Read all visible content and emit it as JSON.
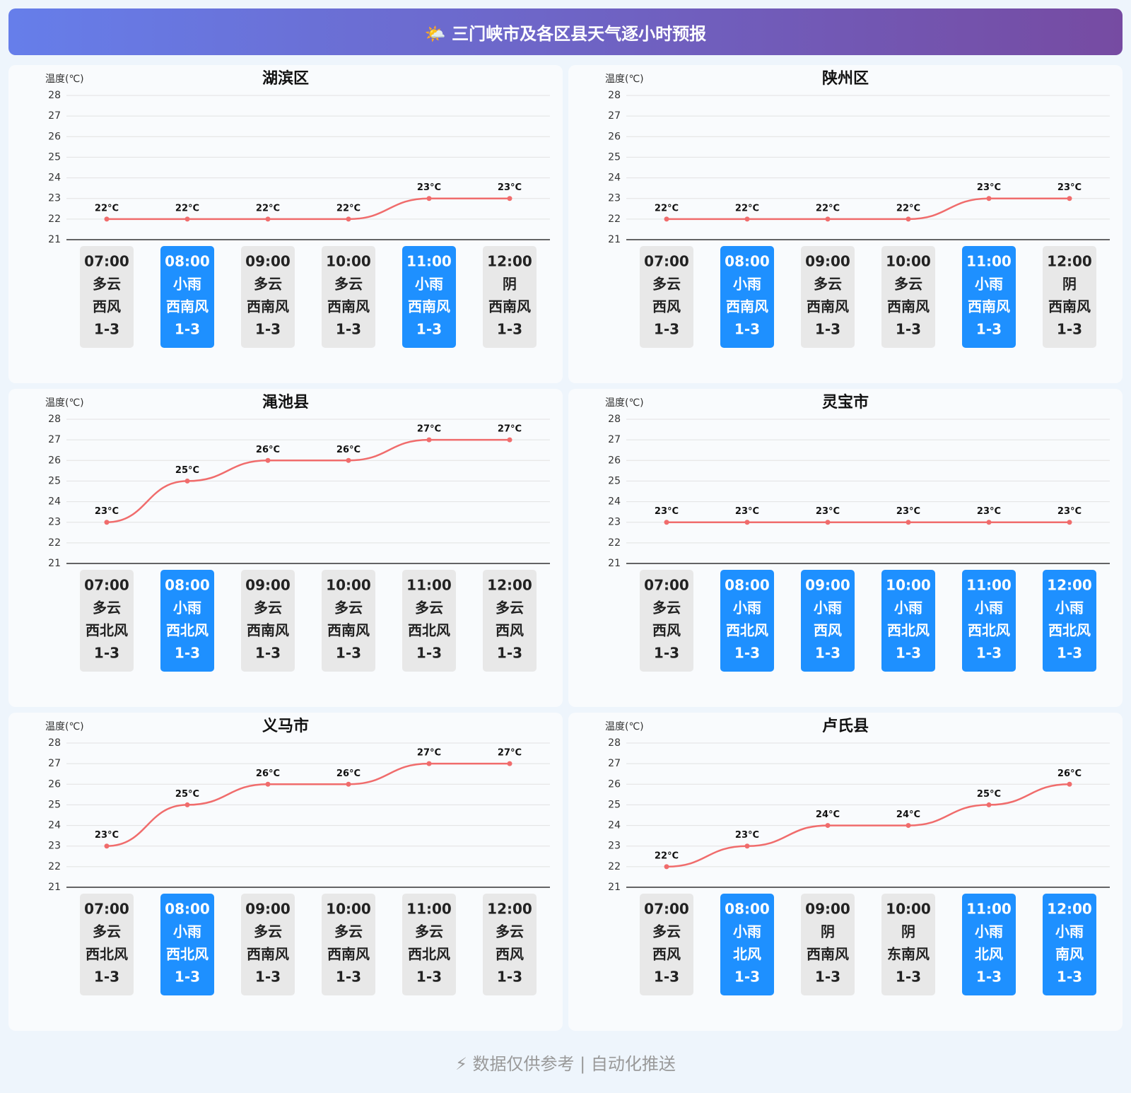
{
  "header": {
    "title": "🌤️ 三门峡市及各区县天气逐小时预报"
  },
  "chart_data": [
    {
      "type": "line",
      "title": "湖滨区",
      "y_label": "温度(℃)",
      "categories": [
        "07:00",
        "08:00",
        "09:00",
        "10:00",
        "11:00",
        "12:00"
      ],
      "values": [
        22,
        22,
        22,
        22,
        23,
        23
      ],
      "value_labels": [
        "22°C",
        "22°C",
        "22°C",
        "22°C",
        "23°C",
        "23°C"
      ],
      "ylim": [
        21,
        28
      ],
      "yticks": [
        21,
        22,
        23,
        24,
        25,
        26,
        27,
        28
      ],
      "grid": true,
      "color": "#f06c6c",
      "weather": [
        "多云",
        "小雨",
        "多云",
        "多云",
        "小雨",
        "阴"
      ],
      "wind": [
        "西风",
        "西南风",
        "西南风",
        "西南风",
        "西南风",
        "西南风"
      ],
      "wind_level": [
        "1-3",
        "1-3",
        "1-3",
        "1-3",
        "1-3",
        "1-3"
      ],
      "highlight": [
        false,
        true,
        false,
        false,
        true,
        false
      ]
    },
    {
      "type": "line",
      "title": "陕州区",
      "y_label": "温度(℃)",
      "categories": [
        "07:00",
        "08:00",
        "09:00",
        "10:00",
        "11:00",
        "12:00"
      ],
      "values": [
        22,
        22,
        22,
        22,
        23,
        23
      ],
      "value_labels": [
        "22°C",
        "22°C",
        "22°C",
        "22°C",
        "23°C",
        "23°C"
      ],
      "ylim": [
        21,
        28
      ],
      "yticks": [
        21,
        22,
        23,
        24,
        25,
        26,
        27,
        28
      ],
      "grid": true,
      "color": "#f06c6c",
      "weather": [
        "多云",
        "小雨",
        "多云",
        "多云",
        "小雨",
        "阴"
      ],
      "wind": [
        "西风",
        "西南风",
        "西南风",
        "西南风",
        "西南风",
        "西南风"
      ],
      "wind_level": [
        "1-3",
        "1-3",
        "1-3",
        "1-3",
        "1-3",
        "1-3"
      ],
      "highlight": [
        false,
        true,
        false,
        false,
        true,
        false
      ]
    },
    {
      "type": "line",
      "title": "渑池县",
      "y_label": "温度(℃)",
      "categories": [
        "07:00",
        "08:00",
        "09:00",
        "10:00",
        "11:00",
        "12:00"
      ],
      "values": [
        23,
        25,
        26,
        26,
        27,
        27
      ],
      "value_labels": [
        "23°C",
        "25°C",
        "26°C",
        "26°C",
        "27°C",
        "27°C"
      ],
      "ylim": [
        21,
        28
      ],
      "yticks": [
        21,
        22,
        23,
        24,
        25,
        26,
        27,
        28
      ],
      "grid": true,
      "color": "#f06c6c",
      "weather": [
        "多云",
        "小雨",
        "多云",
        "多云",
        "多云",
        "多云"
      ],
      "wind": [
        "西北风",
        "西北风",
        "西南风",
        "西南风",
        "西北风",
        "西风"
      ],
      "wind_level": [
        "1-3",
        "1-3",
        "1-3",
        "1-3",
        "1-3",
        "1-3"
      ],
      "highlight": [
        false,
        true,
        false,
        false,
        false,
        false
      ]
    },
    {
      "type": "line",
      "title": "灵宝市",
      "y_label": "温度(℃)",
      "categories": [
        "07:00",
        "08:00",
        "09:00",
        "10:00",
        "11:00",
        "12:00"
      ],
      "values": [
        23,
        23,
        23,
        23,
        23,
        23
      ],
      "value_labels": [
        "23°C",
        "23°C",
        "23°C",
        "23°C",
        "23°C",
        "23°C"
      ],
      "ylim": [
        21,
        28
      ],
      "yticks": [
        21,
        22,
        23,
        24,
        25,
        26,
        27,
        28
      ],
      "grid": true,
      "color": "#f06c6c",
      "weather": [
        "多云",
        "小雨",
        "小雨",
        "小雨",
        "小雨",
        "小雨"
      ],
      "wind": [
        "西风",
        "西北风",
        "西风",
        "西北风",
        "西北风",
        "西北风"
      ],
      "wind_level": [
        "1-3",
        "1-3",
        "1-3",
        "1-3",
        "1-3",
        "1-3"
      ],
      "highlight": [
        false,
        true,
        true,
        true,
        true,
        true
      ]
    },
    {
      "type": "line",
      "title": "义马市",
      "y_label": "温度(℃)",
      "categories": [
        "07:00",
        "08:00",
        "09:00",
        "10:00",
        "11:00",
        "12:00"
      ],
      "values": [
        23,
        25,
        26,
        26,
        27,
        27
      ],
      "value_labels": [
        "23°C",
        "25°C",
        "26°C",
        "26°C",
        "27°C",
        "27°C"
      ],
      "ylim": [
        21,
        28
      ],
      "yticks": [
        21,
        22,
        23,
        24,
        25,
        26,
        27,
        28
      ],
      "grid": true,
      "color": "#f06c6c",
      "weather": [
        "多云",
        "小雨",
        "多云",
        "多云",
        "多云",
        "多云"
      ],
      "wind": [
        "西北风",
        "西北风",
        "西南风",
        "西南风",
        "西北风",
        "西风"
      ],
      "wind_level": [
        "1-3",
        "1-3",
        "1-3",
        "1-3",
        "1-3",
        "1-3"
      ],
      "highlight": [
        false,
        true,
        false,
        false,
        false,
        false
      ]
    },
    {
      "type": "line",
      "title": "卢氏县",
      "y_label": "温度(℃)",
      "categories": [
        "07:00",
        "08:00",
        "09:00",
        "10:00",
        "11:00",
        "12:00"
      ],
      "values": [
        22,
        23,
        24,
        24,
        25,
        26
      ],
      "value_labels": [
        "22°C",
        "23°C",
        "24°C",
        "24°C",
        "25°C",
        "26°C"
      ],
      "ylim": [
        21,
        28
      ],
      "yticks": [
        21,
        22,
        23,
        24,
        25,
        26,
        27,
        28
      ],
      "grid": true,
      "color": "#f06c6c",
      "weather": [
        "多云",
        "小雨",
        "阴",
        "阴",
        "小雨",
        "小雨"
      ],
      "wind": [
        "西风",
        "北风",
        "西南风",
        "东南风",
        "北风",
        "南风"
      ],
      "wind_level": [
        "1-3",
        "1-3",
        "1-3",
        "1-3",
        "1-3",
        "1-3"
      ],
      "highlight": [
        false,
        true,
        false,
        false,
        true,
        true
      ]
    }
  ],
  "footer": {
    "text": "⚡ 数据仅供参考 | 自动化推送"
  }
}
